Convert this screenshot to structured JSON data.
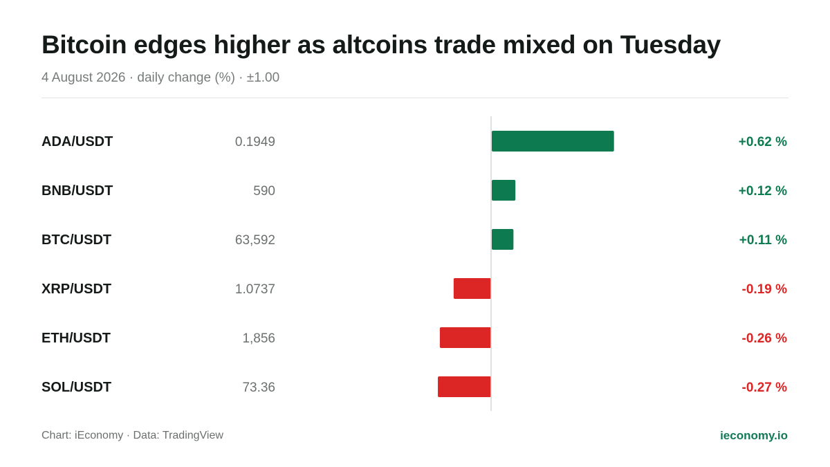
{
  "header": {
    "title": "Bitcoin edges higher as altcoins trade mixed on Tuesday",
    "subtitle": "4 August 2026 · daily change (%) · ±1.00"
  },
  "footer": {
    "source": "Chart: iEconomy · Data: TradingView",
    "brand": "ieconomy.io"
  },
  "colors": {
    "positive": "#0e7a4f",
    "negative": "#dc2626",
    "axis": "#d6d9d7"
  },
  "chart_data": {
    "type": "bar",
    "orientation": "horizontal",
    "xlim": [
      -1.0,
      1.0
    ],
    "rows": [
      {
        "pair": "ADA/USDT",
        "price": "0.1949",
        "change": 0.62,
        "change_label": "+0.62 %"
      },
      {
        "pair": "BNB/USDT",
        "price": "590",
        "change": 0.12,
        "change_label": "+0.12 %"
      },
      {
        "pair": "BTC/USDT",
        "price": "63,592",
        "change": 0.11,
        "change_label": "+0.11 %"
      },
      {
        "pair": "XRP/USDT",
        "price": "1.0737",
        "change": -0.19,
        "change_label": "-0.19 %"
      },
      {
        "pair": "ETH/USDT",
        "price": "1,856",
        "change": -0.26,
        "change_label": "-0.26 %"
      },
      {
        "pair": "SOL/USDT",
        "price": "73.36",
        "change": -0.27,
        "change_label": "-0.27 %"
      }
    ]
  }
}
